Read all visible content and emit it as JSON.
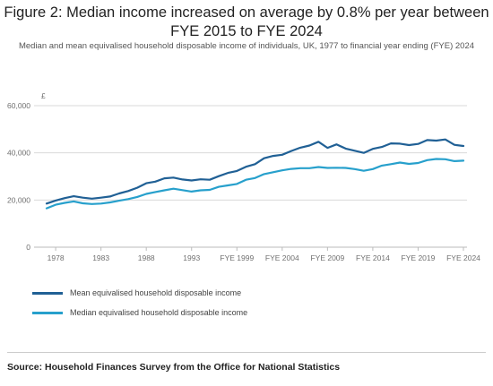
{
  "title": "Figure 2: Median income increased on average by 0.8% per year between FYE 2015 to FYE 2024",
  "subtitle": "Median and mean equivalised household disposable income of individuals, UK, 1977 to financial year ending (FYE) 2024",
  "source": "Source: Household Finances Survey from the Office for National Statistics",
  "colors": {
    "mean": "#206095",
    "median": "#27a0cc",
    "grid": "#d9d9d9",
    "axis": "#bbbbbb"
  },
  "chart_data": {
    "type": "line",
    "ylabel": "£",
    "ylim": [
      0,
      60000
    ],
    "yticks": [
      0,
      20000,
      40000,
      60000
    ],
    "ytick_labels": [
      "0",
      "20,000",
      "40,000",
      "60,000"
    ],
    "xticks": [
      {
        "index": 1,
        "label": "1978"
      },
      {
        "index": 6,
        "label": "1983"
      },
      {
        "index": 11,
        "label": "1988"
      },
      {
        "index": 16,
        "label": "1993"
      },
      {
        "index": 21,
        "label": "FYE 1999"
      },
      {
        "index": 26,
        "label": "FYE 2004"
      },
      {
        "index": 31,
        "label": "FYE 2009"
      },
      {
        "index": 36,
        "label": "FYE 2014"
      },
      {
        "index": 41,
        "label": "FYE 2019"
      },
      {
        "index": 46,
        "label": "FYE 2024"
      }
    ],
    "x": [
      "1977",
      "1978",
      "1979",
      "1980",
      "1981",
      "1982",
      "1983",
      "1984",
      "1985",
      "1986",
      "1987",
      "1988",
      "1989",
      "1990",
      "1991",
      "1992",
      "1993",
      "1994",
      "1995",
      "FYE 1997",
      "FYE 1998",
      "FYE 1999",
      "FYE 2000",
      "FYE 2001",
      "FYE 2002",
      "FYE 2003",
      "FYE 2004",
      "FYE 2005",
      "FYE 2006",
      "FYE 2007",
      "FYE 2008",
      "FYE 2009",
      "FYE 2010",
      "FYE 2011",
      "FYE 2012",
      "FYE 2013",
      "FYE 2014",
      "FYE 2015",
      "FYE 2016",
      "FYE 2017",
      "FYE 2018",
      "FYE 2019",
      "FYE 2020",
      "FYE 2021",
      "FYE 2022",
      "FYE 2023",
      "FYE 2024"
    ],
    "series": [
      {
        "name": "Mean equivalised household disposable income",
        "color": "#206095",
        "values": [
          18500,
          19800,
          20800,
          21600,
          21000,
          20600,
          21000,
          21500,
          22800,
          23800,
          25200,
          27100,
          27800,
          29200,
          29500,
          28700,
          28300,
          28800,
          28600,
          30100,
          31500,
          32300,
          34100,
          35200,
          37700,
          38700,
          39200,
          40800,
          42200,
          43100,
          44700,
          42100,
          43600,
          41800,
          40900,
          40000,
          41700,
          42500,
          44000,
          43900,
          43300,
          43800,
          45400,
          45200,
          45700,
          43400,
          42900
        ]
      },
      {
        "name": "Median equivalised household disposable income",
        "color": "#27a0cc",
        "values": [
          16500,
          18000,
          18800,
          19400,
          18600,
          18300,
          18500,
          19000,
          19700,
          20400,
          21300,
          22600,
          23400,
          24100,
          24800,
          24200,
          23600,
          24100,
          24300,
          25600,
          26200,
          26800,
          28600,
          29300,
          31000,
          31800,
          32600,
          33200,
          33500,
          33500,
          34000,
          33600,
          33700,
          33600,
          33100,
          32400,
          33100,
          34600,
          35200,
          35900,
          35300,
          35700,
          36900,
          37400,
          37300,
          36500,
          36700
        ]
      }
    ],
    "grid": "horizontal",
    "legend_position": "bottom-left"
  }
}
